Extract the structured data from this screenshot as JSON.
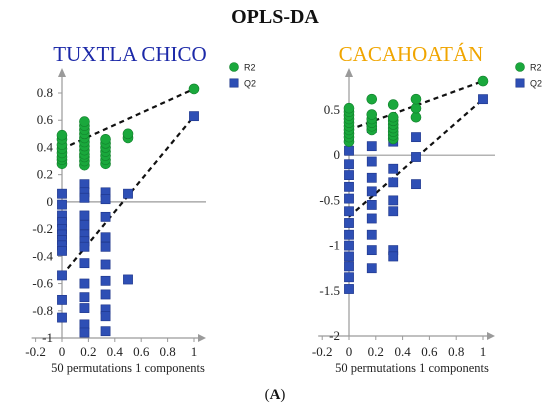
{
  "figure": {
    "title": "OPLS-DA",
    "caption_open": "(",
    "caption_letter": "A",
    "caption_close": ")"
  },
  "colors": {
    "r2": "#1aa83c",
    "q2": "#2e4fb5",
    "axis": "#9a9a9a",
    "trend": "#111111",
    "left_title": "#1c29a8",
    "right_title": "#f0a500"
  },
  "chart_data": [
    {
      "type": "scatter",
      "title": "TUXTLA CHICO",
      "xlabel": "50 permutations 1 components",
      "xlim": [
        -0.2,
        1.1
      ],
      "ylim": [
        -1,
        0.9
      ],
      "xticks": [
        -0.2,
        0,
        0.2,
        0.4,
        0.6,
        0.8,
        1
      ],
      "yticks": [
        -1,
        -0.8,
        -0.6,
        -0.4,
        -0.2,
        0,
        0.2,
        0.4,
        0.6,
        0.8
      ],
      "legend": [
        "R2",
        "Q2"
      ],
      "legend_position": "top-right",
      "series": [
        {
          "name": "R2",
          "marker": "circle",
          "points": [
            [
              0,
              0.28
            ],
            [
              0,
              0.31
            ],
            [
              0,
              0.33
            ],
            [
              0,
              0.36
            ],
            [
              0,
              0.39
            ],
            [
              0,
              0.42
            ],
            [
              0,
              0.46
            ],
            [
              0,
              0.49
            ],
            [
              0.17,
              0.27
            ],
            [
              0.17,
              0.3
            ],
            [
              0.17,
              0.33
            ],
            [
              0.17,
              0.35
            ],
            [
              0.17,
              0.38
            ],
            [
              0.17,
              0.41
            ],
            [
              0.17,
              0.44
            ],
            [
              0.17,
              0.47
            ],
            [
              0.17,
              0.5
            ],
            [
              0.17,
              0.53
            ],
            [
              0.17,
              0.56
            ],
            [
              0.17,
              0.59
            ],
            [
              0.33,
              0.28
            ],
            [
              0.33,
              0.31
            ],
            [
              0.33,
              0.34
            ],
            [
              0.33,
              0.37
            ],
            [
              0.33,
              0.4
            ],
            [
              0.33,
              0.43
            ],
            [
              0.33,
              0.46
            ],
            [
              0.5,
              0.47
            ],
            [
              0.5,
              0.5
            ],
            [
              1,
              0.83
            ]
          ]
        },
        {
          "name": "Q2",
          "marker": "square",
          "points": [
            [
              0,
              0.06
            ],
            [
              0,
              -0.02
            ],
            [
              0,
              -0.1
            ],
            [
              0,
              -0.15
            ],
            [
              0,
              -0.2
            ],
            [
              0,
              -0.24
            ],
            [
              0,
              -0.28
            ],
            [
              0,
              -0.32
            ],
            [
              0,
              -0.36
            ],
            [
              0,
              -0.54
            ],
            [
              0,
              -0.72
            ],
            [
              0,
              -0.85
            ],
            [
              0.17,
              0.13
            ],
            [
              0.17,
              0.07
            ],
            [
              0.17,
              0.03
            ],
            [
              0.17,
              -0.1
            ],
            [
              0.17,
              -0.17
            ],
            [
              0.17,
              -0.24
            ],
            [
              0.17,
              -0.29
            ],
            [
              0.17,
              -0.33
            ],
            [
              0.17,
              -0.45
            ],
            [
              0.17,
              -0.6
            ],
            [
              0.17,
              -0.7
            ],
            [
              0.17,
              -0.78
            ],
            [
              0.17,
              -0.9
            ],
            [
              0.17,
              -0.96
            ],
            [
              0.33,
              0.07
            ],
            [
              0.33,
              0.02
            ],
            [
              0.33,
              -0.11
            ],
            [
              0.33,
              -0.26
            ],
            [
              0.33,
              -0.33
            ],
            [
              0.33,
              -0.46
            ],
            [
              0.33,
              -0.58
            ],
            [
              0.33,
              -0.68
            ],
            [
              0.33,
              -0.79
            ],
            [
              0.33,
              -0.84
            ],
            [
              0.33,
              -0.95
            ],
            [
              0.5,
              0.06
            ],
            [
              0.5,
              -0.57
            ],
            [
              1,
              0.63
            ]
          ]
        }
      ],
      "trend_lines": [
        {
          "series": "R2",
          "from": [
            0,
            0.39
          ],
          "to": [
            1,
            0.83
          ]
        },
        {
          "series": "Q2",
          "from": [
            0,
            -0.54
          ],
          "to": [
            1,
            0.63
          ]
        }
      ]
    },
    {
      "type": "scatter",
      "title": "CACAHOATÁN",
      "xlabel": "50 permutations 1 components",
      "xlim": [
        -0.2,
        1.1
      ],
      "ylim": [
        -2,
        0.8
      ],
      "xticks": [
        -0.2,
        0,
        0.2,
        0.4,
        0.6,
        0.8,
        1
      ],
      "yticks": [
        -2,
        -1.5,
        -1,
        -0.5,
        0,
        0.5
      ],
      "legend": [
        "R2",
        "Q2"
      ],
      "legend_position": "top-right",
      "series": [
        {
          "name": "R2",
          "marker": "circle",
          "points": [
            [
              0,
              0.15
            ],
            [
              0,
              0.2
            ],
            [
              0,
              0.24
            ],
            [
              0,
              0.28
            ],
            [
              0,
              0.32
            ],
            [
              0,
              0.36
            ],
            [
              0,
              0.4
            ],
            [
              0,
              0.44
            ],
            [
              0,
              0.48
            ],
            [
              0,
              0.52
            ],
            [
              0.17,
              0.28
            ],
            [
              0.17,
              0.32
            ],
            [
              0.17,
              0.36
            ],
            [
              0.17,
              0.4
            ],
            [
              0.17,
              0.45
            ],
            [
              0.17,
              0.62
            ],
            [
              0.33,
              0.18
            ],
            [
              0.33,
              0.22
            ],
            [
              0.33,
              0.26
            ],
            [
              0.33,
              0.3
            ],
            [
              0.33,
              0.34
            ],
            [
              0.33,
              0.38
            ],
            [
              0.33,
              0.42
            ],
            [
              0.33,
              0.56
            ],
            [
              0.5,
              0.42
            ],
            [
              0.5,
              0.52
            ],
            [
              0.5,
              0.62
            ],
            [
              1,
              0.82
            ]
          ]
        },
        {
          "name": "Q2",
          "marker": "square",
          "points": [
            [
              0,
              0.2
            ],
            [
              0,
              0.05
            ],
            [
              0,
              -0.1
            ],
            [
              0,
              -0.22
            ],
            [
              0,
              -0.35
            ],
            [
              0,
              -0.48
            ],
            [
              0,
              -0.62
            ],
            [
              0,
              -0.75
            ],
            [
              0,
              -0.88
            ],
            [
              0,
              -1.0
            ],
            [
              0,
              -1.12
            ],
            [
              0,
              -1.23
            ],
            [
              0,
              -1.35
            ],
            [
              0,
              -1.48
            ],
            [
              0.17,
              0.3
            ],
            [
              0.17,
              0.1
            ],
            [
              0.17,
              -0.07
            ],
            [
              0.17,
              -0.25
            ],
            [
              0.17,
              -0.4
            ],
            [
              0.17,
              -0.55
            ],
            [
              0.17,
              -0.7
            ],
            [
              0.17,
              -0.88
            ],
            [
              0.17,
              -1.05
            ],
            [
              0.17,
              -1.25
            ],
            [
              0.33,
              0.28
            ],
            [
              0.33,
              0.15
            ],
            [
              0.33,
              -0.15
            ],
            [
              0.33,
              -0.3
            ],
            [
              0.33,
              -0.5
            ],
            [
              0.33,
              -0.62
            ],
            [
              0.33,
              -1.05
            ],
            [
              0.33,
              -1.12
            ],
            [
              0.5,
              0.2
            ],
            [
              0.5,
              -0.02
            ],
            [
              0.5,
              -0.32
            ],
            [
              1,
              0.62
            ]
          ]
        }
      ],
      "trend_lines": [
        {
          "series": "R2",
          "from": [
            0,
            0.28
          ],
          "to": [
            1,
            0.82
          ]
        },
        {
          "series": "Q2",
          "from": [
            0,
            -0.68
          ],
          "to": [
            1,
            0.62
          ]
        }
      ]
    }
  ]
}
